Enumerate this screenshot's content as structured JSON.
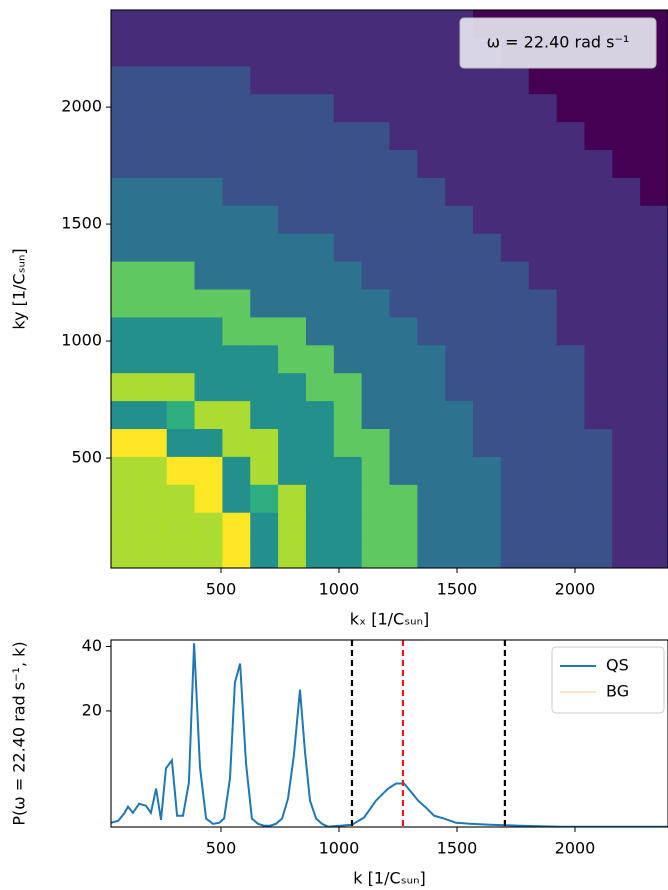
{
  "chart_data": [
    {
      "type": "heatmap",
      "colormap": "viridis",
      "xlabel": "kₓ [1/Cₛᵤₙ]",
      "ylabel": "ky [1/Cₛᵤₙ]",
      "annotation": "ω = 22.40 rad s⁻¹",
      "xlim": [
        34,
        2394
      ],
      "ylim": [
        30,
        2415
      ],
      "xticks": [
        500,
        1000,
        1500,
        2000
      ],
      "yticks": [
        500,
        1000,
        1500,
        2000
      ],
      "z": [
        [
          8,
          8,
          8,
          8,
          9,
          5,
          8,
          5,
          5,
          7,
          7,
          4,
          4,
          4,
          3,
          3,
          3,
          3,
          2,
          2
        ],
        [
          8,
          8,
          8,
          8,
          9,
          5,
          8,
          5,
          5,
          7,
          7,
          4,
          4,
          4,
          3,
          3,
          3,
          3,
          2,
          2
        ],
        [
          8,
          8,
          8,
          9,
          5,
          6,
          8,
          5,
          5,
          7,
          7,
          4,
          4,
          4,
          3,
          3,
          3,
          3,
          2,
          2
        ],
        [
          8,
          8,
          9,
          9,
          5,
          8,
          5,
          5,
          5,
          7,
          4,
          4,
          4,
          4,
          3,
          3,
          3,
          3,
          2,
          2
        ],
        [
          9,
          9,
          5,
          5,
          8,
          8,
          5,
          5,
          7,
          7,
          4,
          4,
          4,
          3,
          3,
          3,
          3,
          3,
          2,
          2
        ],
        [
          5,
          5,
          6,
          8,
          8,
          5,
          5,
          5,
          7,
          4,
          4,
          4,
          4,
          3,
          3,
          3,
          3,
          2,
          2,
          2
        ],
        [
          8,
          8,
          8,
          5,
          5,
          5,
          5,
          7,
          7,
          4,
          4,
          4,
          3,
          3,
          3,
          3,
          3,
          2,
          2,
          2
        ],
        [
          5,
          5,
          5,
          5,
          5,
          5,
          7,
          7,
          4,
          4,
          4,
          4,
          3,
          3,
          3,
          3,
          3,
          2,
          2,
          2
        ],
        [
          5,
          5,
          5,
          5,
          7,
          7,
          7,
          4,
          4,
          4,
          4,
          3,
          3,
          3,
          3,
          3,
          2,
          2,
          2,
          2
        ],
        [
          7,
          7,
          7,
          7,
          7,
          4,
          4,
          4,
          4,
          4,
          3,
          3,
          3,
          3,
          3,
          3,
          2,
          2,
          2,
          2
        ],
        [
          7,
          7,
          7,
          4,
          4,
          4,
          4,
          4,
          4,
          3,
          3,
          3,
          3,
          3,
          3,
          2,
          2,
          2,
          2,
          2
        ],
        [
          4,
          4,
          4,
          4,
          4,
          4,
          4,
          4,
          3,
          3,
          3,
          3,
          3,
          3,
          2,
          2,
          2,
          2,
          2,
          2
        ],
        [
          4,
          4,
          4,
          4,
          4,
          4,
          3,
          3,
          3,
          3,
          3,
          3,
          3,
          2,
          2,
          2,
          2,
          2,
          2,
          2
        ],
        [
          4,
          4,
          4,
          4,
          3,
          3,
          3,
          3,
          3,
          3,
          3,
          3,
          2,
          2,
          2,
          2,
          2,
          2,
          2,
          1
        ],
        [
          3,
          3,
          3,
          3,
          3,
          3,
          3,
          3,
          3,
          3,
          3,
          2,
          2,
          2,
          2,
          2,
          2,
          2,
          1,
          1
        ],
        [
          3,
          3,
          3,
          3,
          3,
          3,
          3,
          3,
          3,
          3,
          2,
          2,
          2,
          2,
          2,
          2,
          2,
          1,
          1,
          1
        ],
        [
          3,
          3,
          3,
          3,
          3,
          3,
          3,
          3,
          2,
          2,
          2,
          2,
          2,
          2,
          2,
          2,
          1,
          1,
          1,
          1
        ],
        [
          3,
          3,
          3,
          3,
          3,
          2,
          2,
          2,
          2,
          2,
          2,
          2,
          2,
          2,
          2,
          1,
          1,
          1,
          1,
          1
        ],
        [
          2,
          2,
          2,
          2,
          2,
          2,
          2,
          2,
          2,
          2,
          2,
          2,
          2,
          2,
          1,
          1,
          1,
          1,
          1,
          1
        ],
        [
          2,
          2,
          2,
          2,
          2,
          2,
          2,
          2,
          2,
          2,
          2,
          2,
          2,
          1,
          1,
          1,
          1,
          1,
          1,
          1
        ]
      ]
    },
    {
      "type": "line",
      "xlabel": "k [1/Cₛᵤₙ]",
      "ylabel": "P(ω = 22.40 rad s⁻¹, k)",
      "xlim": [
        34,
        2394
      ],
      "ylim": [
        -16,
        42
      ],
      "xticks": [
        500,
        1000,
        1500,
        2000
      ],
      "yticks": [
        20,
        40
      ],
      "legend": "upper right",
      "x": [
        34,
        64,
        89,
        106,
        127,
        153,
        182,
        203,
        225,
        246,
        267,
        292,
        314,
        339,
        364,
        386,
        411,
        437,
        466,
        492,
        513,
        538,
        559,
        581,
        606,
        631,
        657,
        682,
        708,
        733,
        759,
        784,
        809,
        835,
        856,
        877,
        903,
        928,
        953,
        1004,
        1055,
        1106,
        1157,
        1208,
        1242,
        1276,
        1301,
        1335,
        1369,
        1403,
        1445,
        1496,
        1555,
        1640,
        1767,
        1936,
        2191,
        2394
      ],
      "series": [
        {
          "name": "QS",
          "color": "#1f77b4",
          "values": [
            -14.7,
            -14.1,
            -11.9,
            -9.7,
            -11.6,
            -8.8,
            -9.4,
            -11.6,
            -4.1,
            -13.8,
            2.2,
            4.7,
            -12.5,
            -12.5,
            -2.2,
            41,
            2.5,
            -13.4,
            -15,
            -14.7,
            -13.4,
            -0.9,
            28.8,
            34.7,
            3.8,
            -13.4,
            -15,
            -15.6,
            -15.6,
            -15,
            -13.4,
            -7.2,
            6.3,
            26.6,
            7.2,
            -7.8,
            -13.4,
            -15,
            -15.9,
            -15.6,
            -15.3,
            -13.1,
            -7.8,
            -4.1,
            -2.5,
            -2.5,
            -4.7,
            -7.8,
            -10,
            -12.5,
            -13.4,
            -14.7,
            -15,
            -15.3,
            -15.6,
            -15.9,
            -15.9,
            -15.9
          ]
        },
        {
          "name": "BG",
          "color": "#fde3cc"
        }
      ],
      "vlines": [
        {
          "x": 1055,
          "color": "#000000"
        },
        {
          "x": 1271,
          "color": "#e41a1c"
        },
        {
          "x": 1703,
          "color": "#000000"
        }
      ]
    }
  ]
}
